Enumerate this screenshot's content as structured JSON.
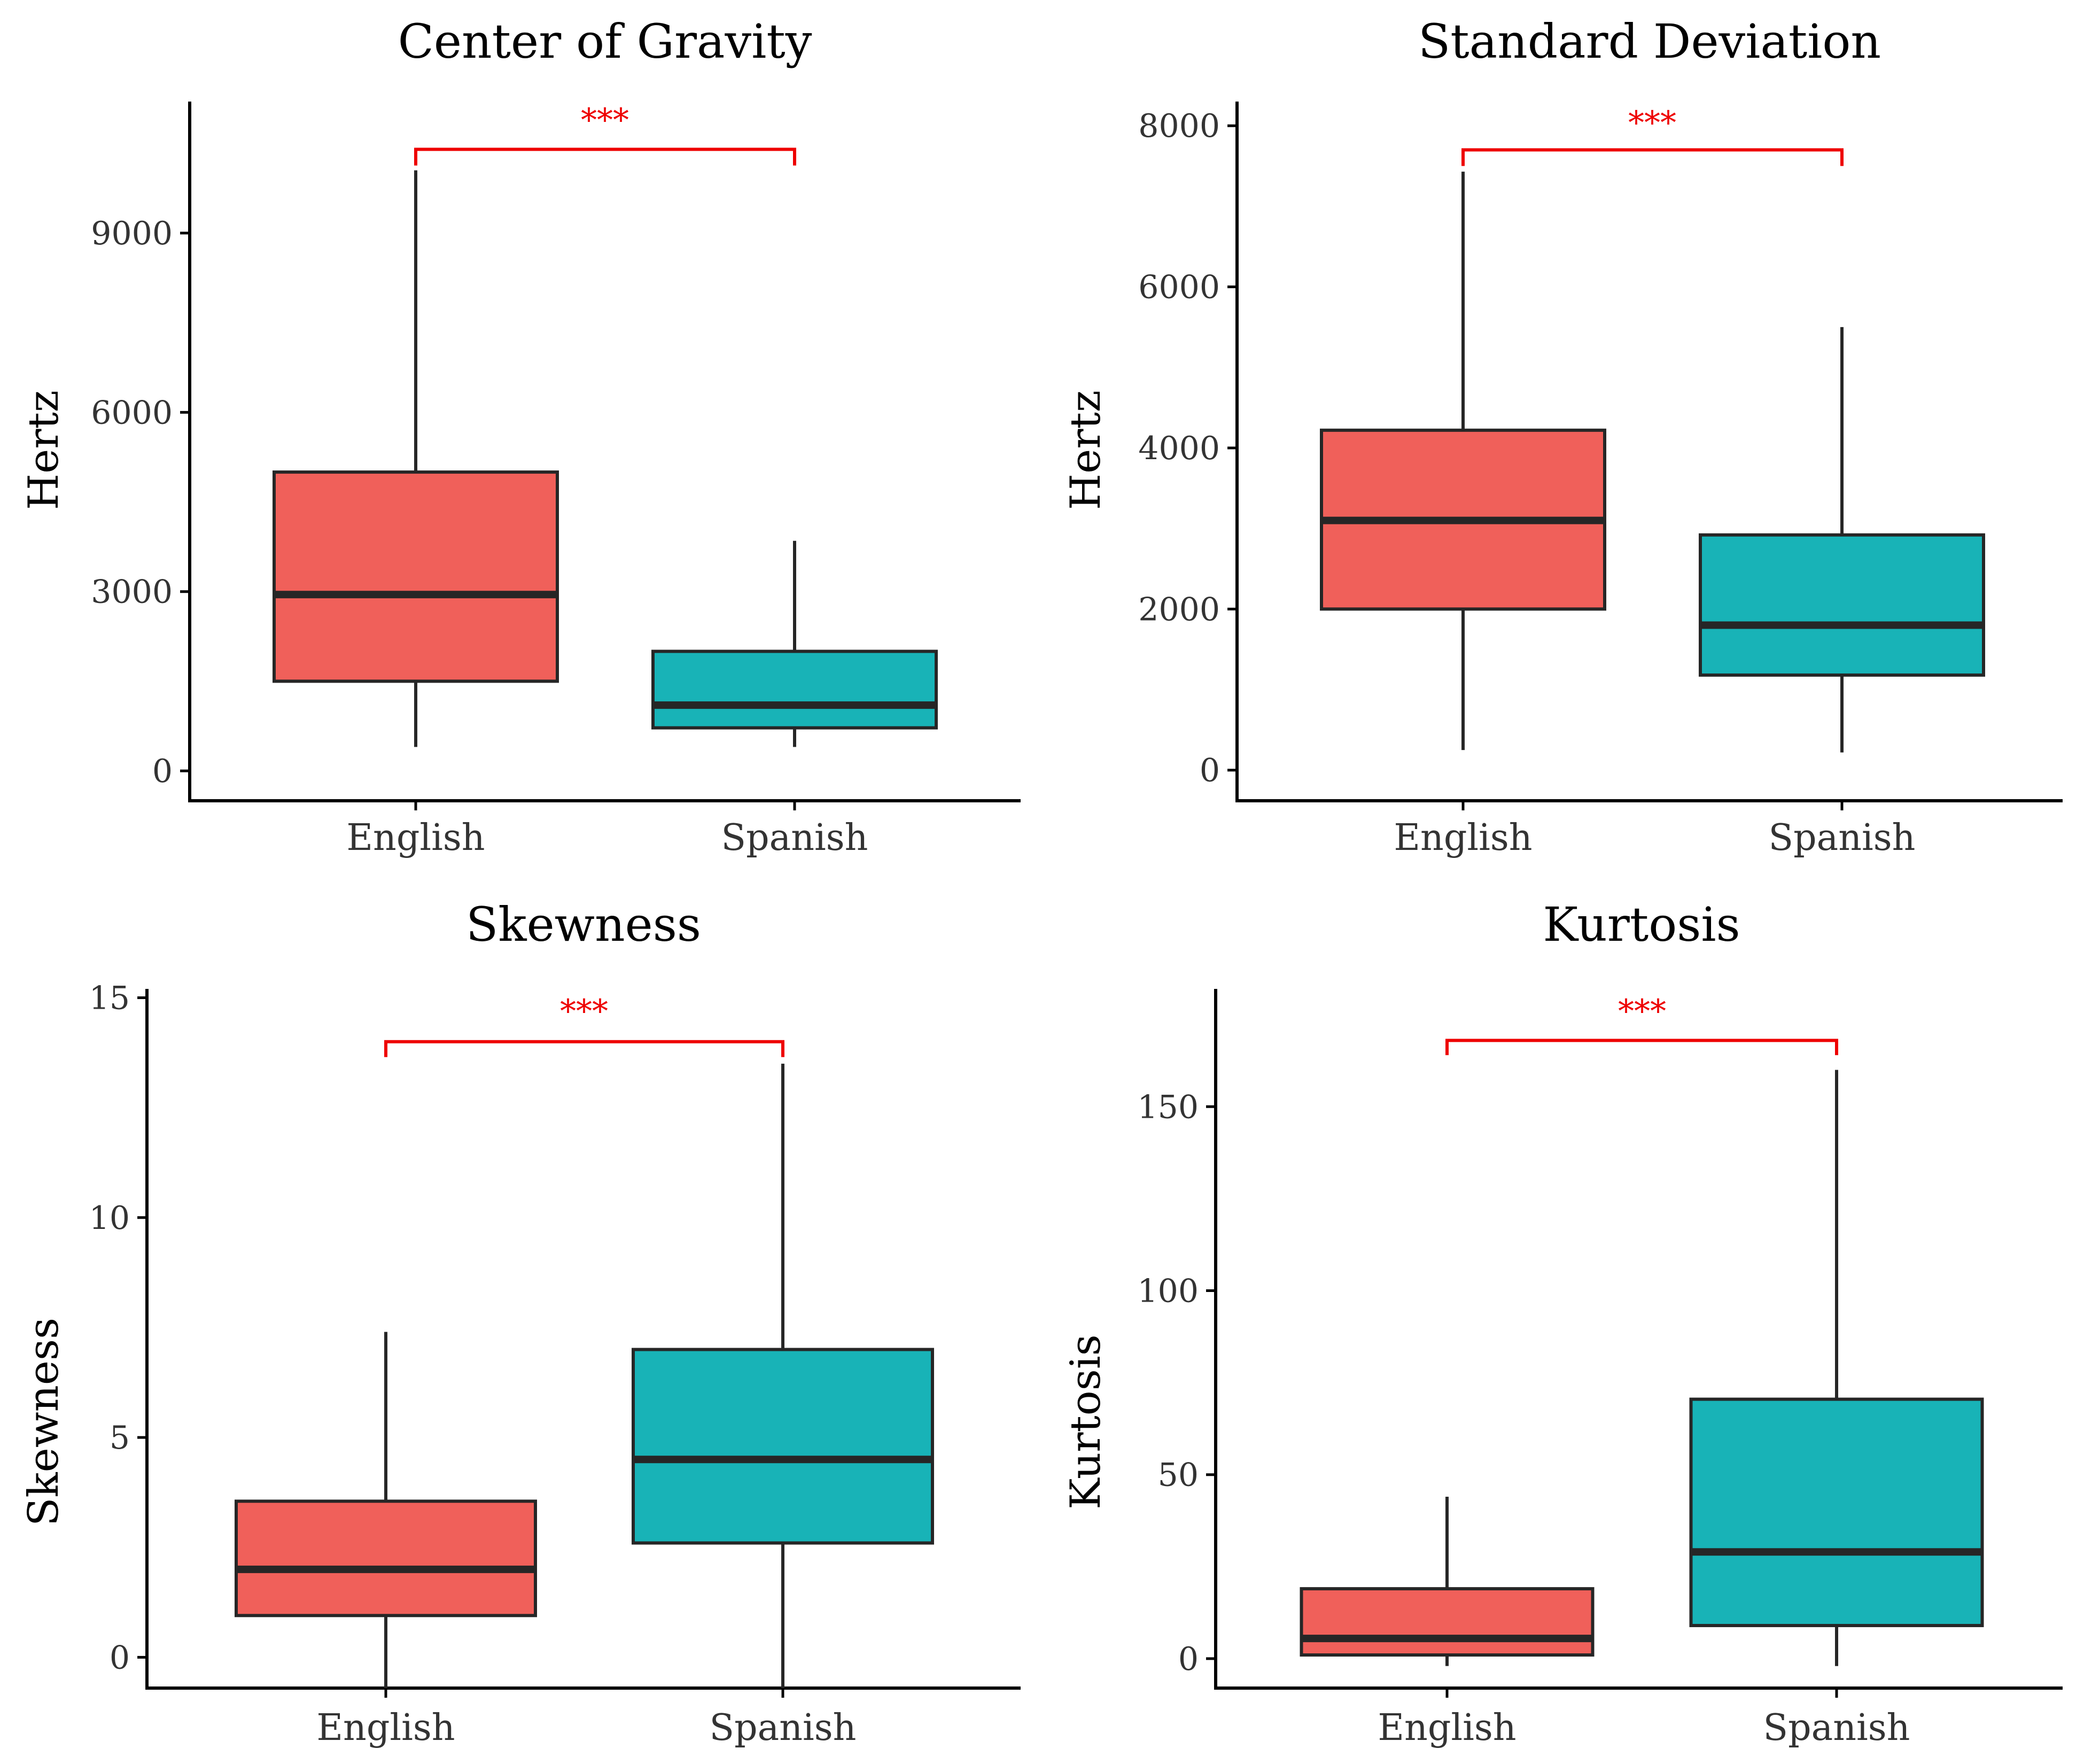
{
  "colors": {
    "english": "#F0605A",
    "spanish": "#18B3B7",
    "outline": "#262626",
    "significance": "#EE0000",
    "axis": "#000000"
  },
  "chart_data": [
    {
      "type": "boxplot",
      "title": "Center of Gravity",
      "ylabel": "Hertz",
      "categories": [
        "English",
        "Spanish"
      ],
      "ylim": [
        -500,
        11200
      ],
      "yticks": [
        0,
        3000,
        6000,
        9000
      ],
      "ytick_labels": [
        "0",
        "3000",
        "6000",
        "9000"
      ],
      "boxes": [
        {
          "name": "English",
          "whisker_low": 400,
          "q1": 1500,
          "median": 2950,
          "q3": 5000,
          "whisker_high": 10050
        },
        {
          "name": "Spanish",
          "whisker_low": 400,
          "q1": 720,
          "median": 1100,
          "q3": 2000,
          "whisker_high": 3850
        }
      ],
      "significance": {
        "label": "***",
        "y": 10400,
        "tick_low": 10130
      }
    },
    {
      "type": "boxplot",
      "title": "Standard Deviation",
      "ylabel": "Hertz",
      "categories": [
        "English",
        "Spanish"
      ],
      "ylim": [
        -380,
        8300
      ],
      "yticks": [
        0,
        2000,
        4000,
        6000,
        8000
      ],
      "ytick_labels": [
        "0",
        "2000",
        "4000",
        "6000",
        "8000"
      ],
      "boxes": [
        {
          "name": "English",
          "whisker_low": 250,
          "q1": 2000,
          "median": 3100,
          "q3": 4220,
          "whisker_high": 7430
        },
        {
          "name": "Spanish",
          "whisker_low": 220,
          "q1": 1180,
          "median": 1800,
          "q3": 2920,
          "whisker_high": 5500
        }
      ],
      "significance": {
        "label": "***",
        "y": 7700,
        "tick_low": 7500
      }
    },
    {
      "type": "boxplot",
      "title": "Skewness",
      "ylabel": "Skewness",
      "categories": [
        "English",
        "Spanish"
      ],
      "ylim": [
        -0.7,
        15.2
      ],
      "yticks": [
        0,
        5,
        10,
        15
      ],
      "ytick_labels": [
        "0",
        "5",
        "10",
        "15"
      ],
      "boxes": [
        {
          "name": "English",
          "whisker_low": -0.7,
          "q1": 0.95,
          "median": 2.0,
          "q3": 3.55,
          "whisker_high": 7.4
        },
        {
          "name": "Spanish",
          "whisker_low": -0.7,
          "q1": 2.6,
          "median": 4.5,
          "q3": 7.0,
          "whisker_high": 13.5
        }
      ],
      "significance": {
        "label": "***",
        "y": 14.0,
        "tick_low": 13.65
      }
    },
    {
      "type": "boxplot",
      "title": "Kurtosis",
      "ylabel": "Kurtosis",
      "categories": [
        "English",
        "Spanish"
      ],
      "ylim": [
        -8,
        182
      ],
      "yticks": [
        0,
        50,
        100,
        150
      ],
      "ytick_labels": [
        "0",
        "50",
        "100",
        "150"
      ],
      "boxes": [
        {
          "name": "English",
          "whisker_low": -2,
          "q1": 1,
          "median": 5.5,
          "q3": 19,
          "whisker_high": 44
        },
        {
          "name": "Spanish",
          "whisker_low": -2,
          "q1": 9,
          "median": 29,
          "q3": 70.5,
          "whisker_high": 160
        }
      ],
      "significance": {
        "label": "***",
        "y": 168,
        "tick_low": 164
      }
    }
  ]
}
